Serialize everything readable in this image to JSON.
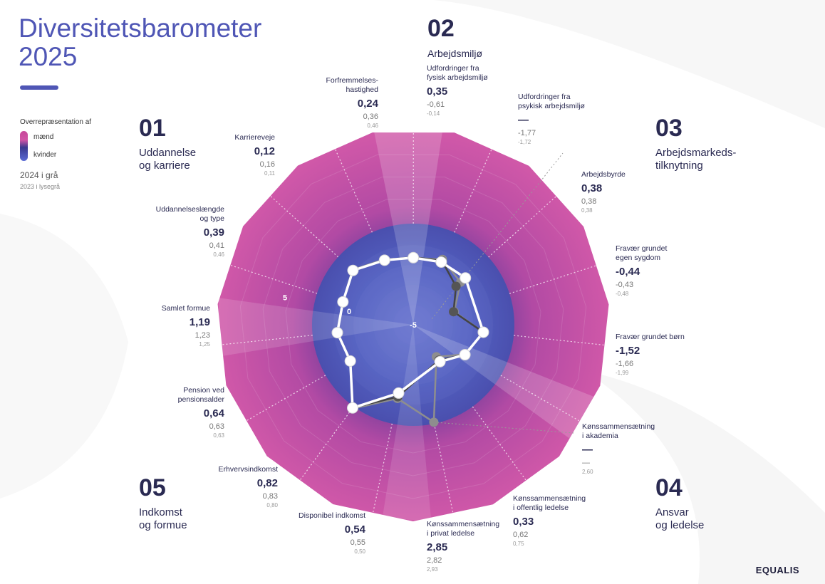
{
  "header": {
    "title_line1": "Diversitetsbarometer",
    "title_line2": "2025"
  },
  "legend": {
    "title": "Overrepræsentation af",
    "men": "mænd",
    "women": "kvinder",
    "year_current": "2024 i grå",
    "year_previous": "2023 i lysegrå"
  },
  "sections": [
    {
      "num": "01",
      "name": "Uddannelse\nog karriere"
    },
    {
      "num": "02",
      "name": "Arbejdsmiljø"
    },
    {
      "num": "03",
      "name": "Arbejdsmarkeds-\ntilknytning"
    },
    {
      "num": "04",
      "name": "Ansvar\nog ledelse"
    },
    {
      "num": "05",
      "name": "Indkomst\nog formue"
    }
  ],
  "chart_data": {
    "type": "radar",
    "title": "Diversitetsbarometer 2025",
    "axis_tick_labels": [
      "-5",
      "0",
      "5"
    ],
    "axis_range": [
      -5,
      10
    ],
    "color_scale": {
      "men": "#c7479a",
      "women": "#4f56b5"
    },
    "categories": [
      "Forfremmelses-\nhastighed",
      "Udfordringer fra\nfysisk arbejdsmiljø",
      "Udfordringer fra\npsykisk arbejdsmiljø",
      "Arbejdsbyrde",
      "Fravær grundet\negen sygdom",
      "Fravær grundet børn",
      "Kønssammensætning\ni akademia",
      "Kønssammensætning\ni offentlig ledelse",
      "Kønssammensætning\ni privat ledelse",
      "Disponibel indkomst",
      "Erhvervsindkomst",
      "Pension ved\npensionsalder",
      "Samlet formue",
      "Uddannelseslængde\nog type",
      "Karriereveje"
    ],
    "labels_2025": [
      "0,24",
      "0,35",
      "—",
      "0,38",
      "-0,44",
      "-1,52",
      "—",
      "0,33",
      "2,85",
      "0,54",
      "0,82",
      "0,64",
      "1,19",
      "0,39",
      "0,12"
    ],
    "labels_2024": [
      "0,36",
      "-0,61",
      "-1,77",
      "0,38",
      "-0,43",
      "-1,66",
      "—",
      "0,62",
      "2,82",
      "0,55",
      "0,83",
      "0,63",
      "1,23",
      "0,41",
      "0,16"
    ],
    "labels_2023": [
      "0,46",
      "-0,14",
      "-1,72",
      "0,38",
      "-0,48",
      "-1,99",
      "2,60",
      "0,75",
      "2,93",
      "0,50",
      "0,80",
      "0,63",
      "1,25",
      "0,46",
      "0,11"
    ],
    "series": [
      {
        "name": "2025",
        "values": [
          0.24,
          0.35,
          null,
          0.38,
          -0.44,
          -1.52,
          null,
          0.33,
          2.85,
          0.54,
          0.82,
          0.64,
          1.19,
          0.39,
          0.12
        ]
      },
      {
        "name": "2024",
        "values": [
          0.36,
          -0.61,
          -1.77,
          0.38,
          -0.43,
          -1.66,
          null,
          0.62,
          2.82,
          0.55,
          0.83,
          0.63,
          1.23,
          0.41,
          0.16
        ]
      },
      {
        "name": "2023",
        "values": [
          0.46,
          -0.14,
          -1.72,
          0.38,
          -0.48,
          -1.99,
          2.6,
          0.75,
          2.93,
          0.5,
          0.8,
          0.63,
          1.25,
          0.46,
          0.11
        ]
      }
    ]
  },
  "brand": "EQUALIS"
}
